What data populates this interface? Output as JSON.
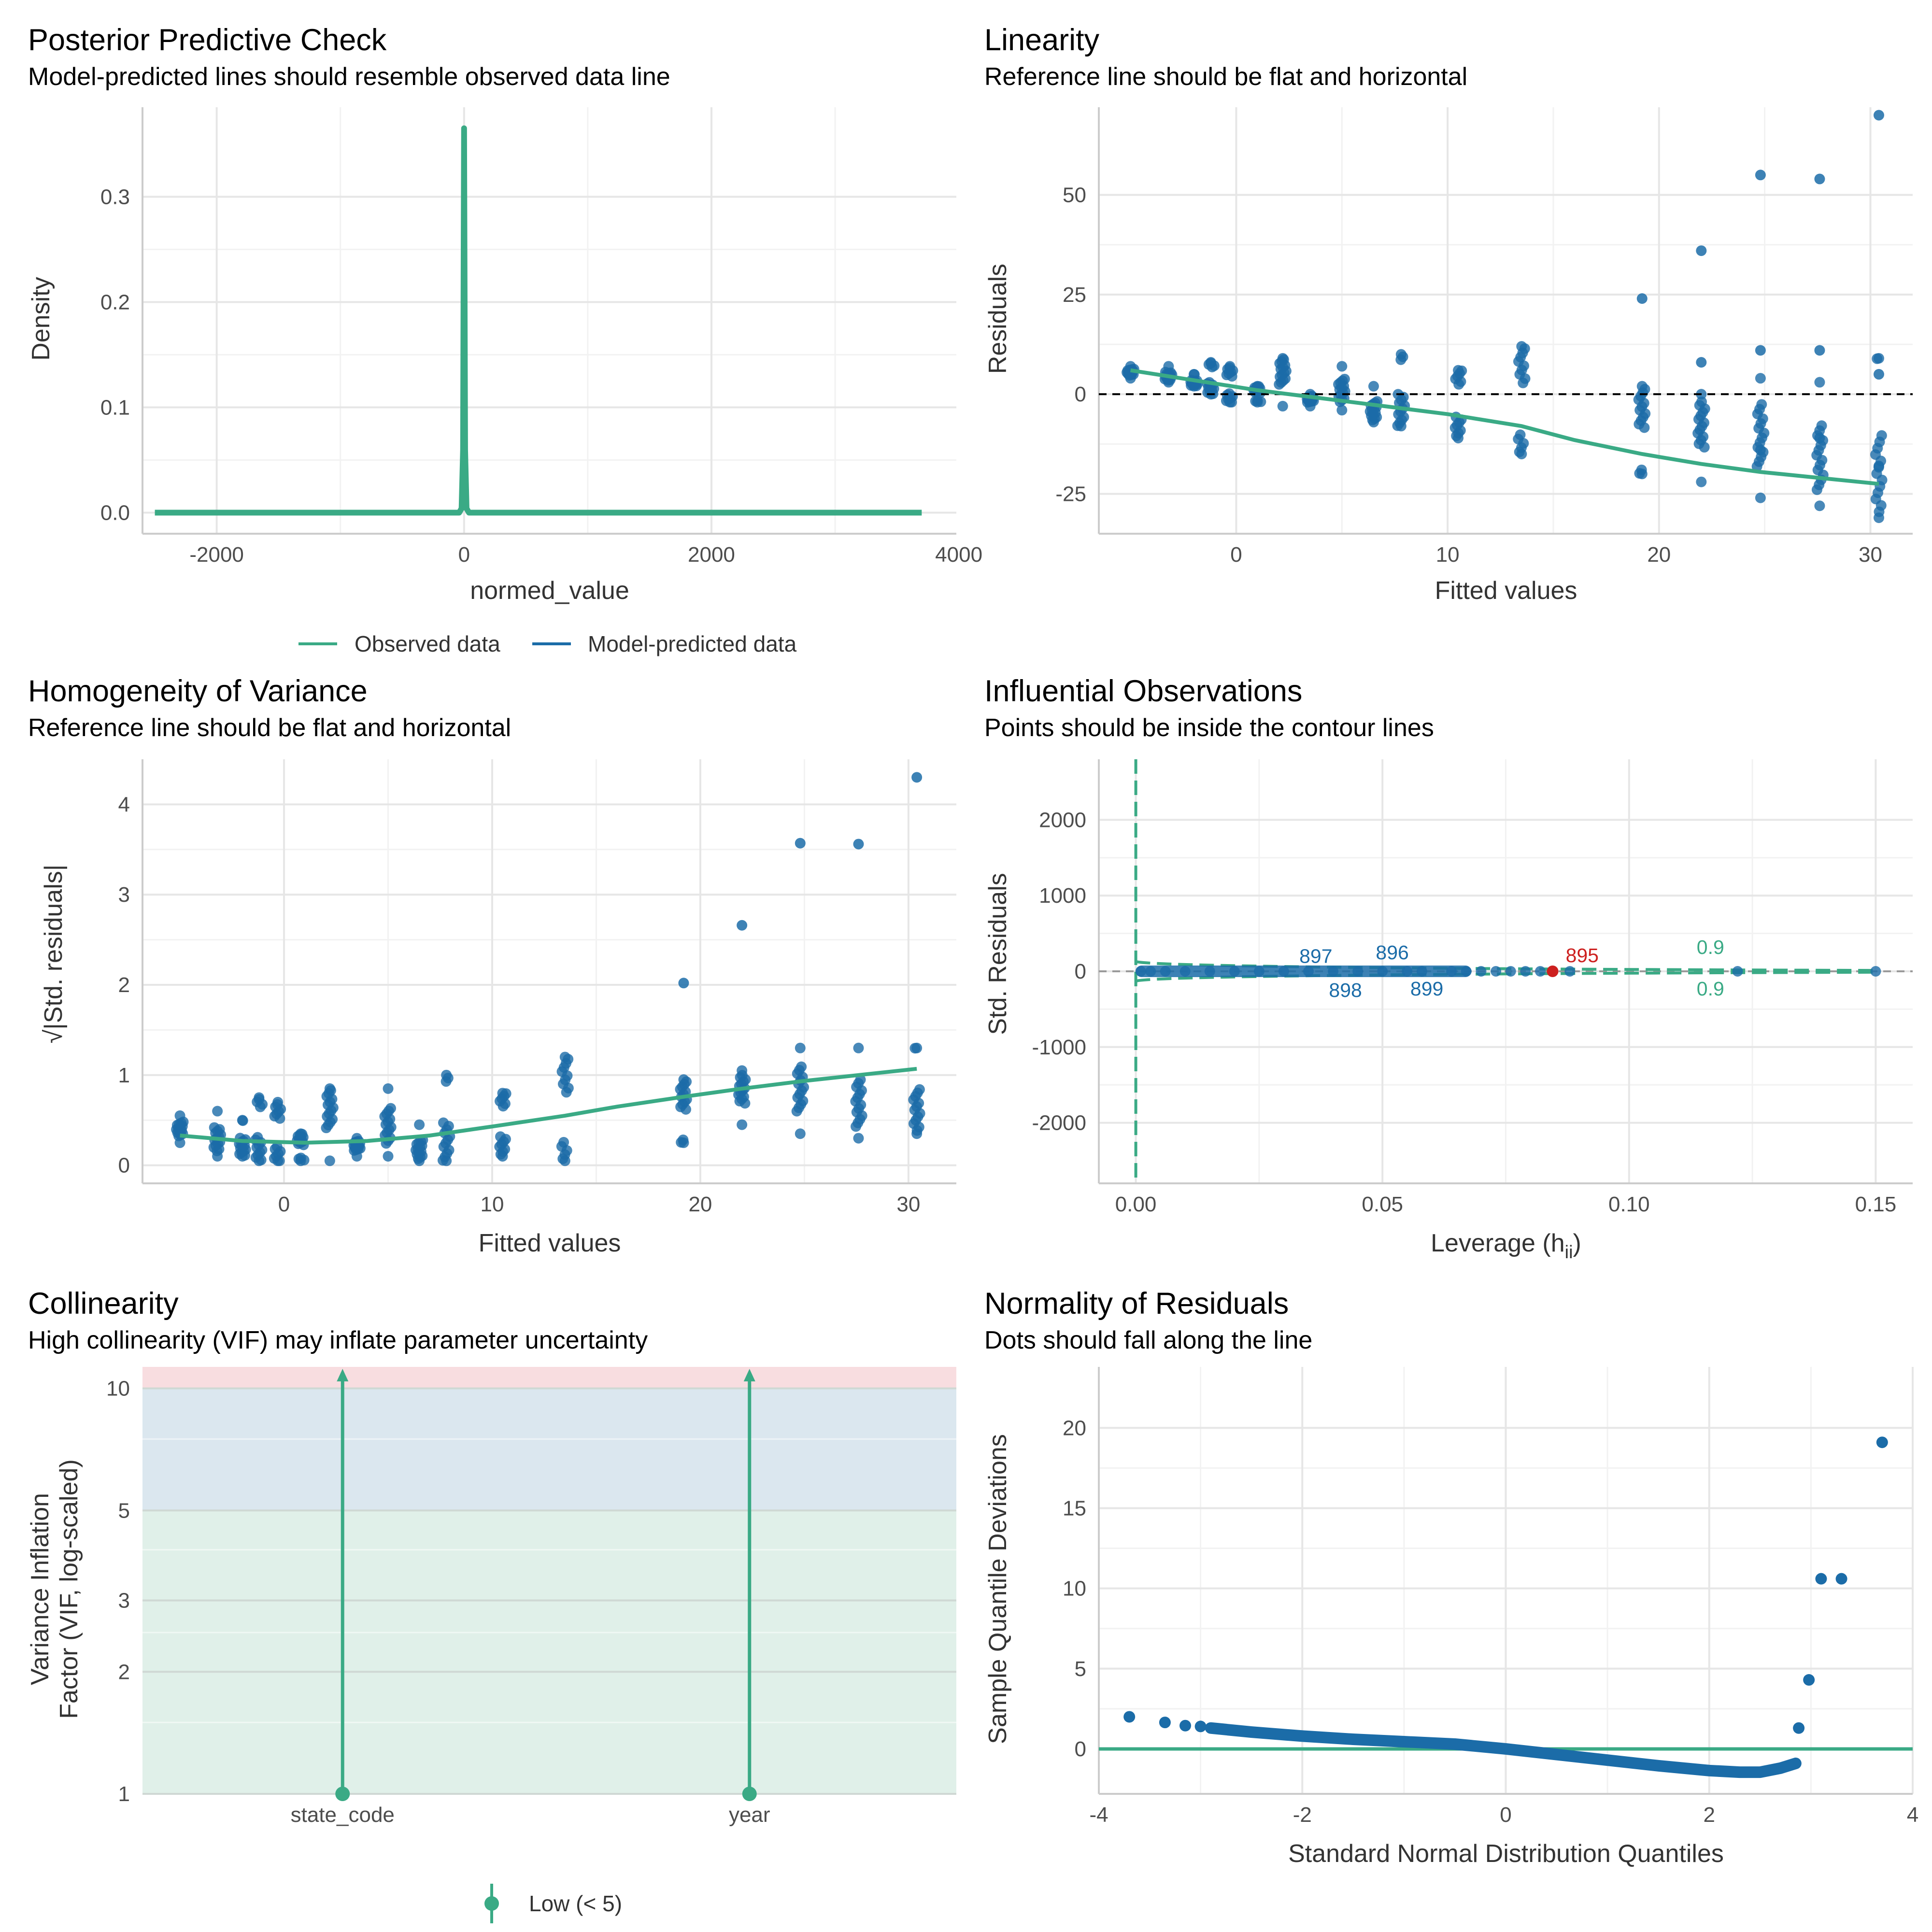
{
  "colors": {
    "observed": "#3aaa85",
    "predicted": "#1b6ca8",
    "point": "#1b6ca8",
    "line": "#3aaa85",
    "highlight": "#cd201f",
    "zone_low": "#e0f0e9",
    "zone_moderate": "#dbe7ef",
    "zone_high": "#f8dde0"
  },
  "chart_data": [
    {
      "id": "ppc",
      "type": "line",
      "title": "Posterior Predictive Check",
      "subtitle": "Model-predicted lines should resemble observed data line",
      "xlabel": "normed_value",
      "ylabel": "Density",
      "xlim": [
        -2600,
        3980
      ],
      "ylim": [
        -0.02,
        0.385
      ],
      "xticks": [
        -2000,
        0,
        2000,
        4000
      ],
      "xtick_labels": [
        "-2000",
        "0",
        "2000",
        "4000"
      ],
      "yticks": [
        0,
        0.1,
        0.2,
        0.3
      ],
      "ytick_labels": [
        "0.0",
        "0.1",
        "0.2",
        "0.3"
      ],
      "grid": true,
      "legend": {
        "position": "bottom",
        "items": [
          {
            "label": "Observed data",
            "color": "#3aaa85"
          },
          {
            "label": "Model-predicted data",
            "color": "#1b6ca8"
          }
        ]
      },
      "series": [
        {
          "name": "Observed data",
          "x": [
            -2500,
            -40,
            -20,
            -8,
            -3,
            0,
            3,
            8,
            20,
            40,
            3700
          ],
          "y": [
            0,
            0,
            0.004,
            0.06,
            0.25,
            0.365,
            0.25,
            0.06,
            0.004,
            0,
            0
          ]
        }
      ]
    },
    {
      "id": "linearity",
      "type": "scatter",
      "title": "Linearity",
      "subtitle": "Reference line should be flat and horizontal",
      "xlabel": "Fitted values",
      "ylabel": "Residuals",
      "xlim": [
        -6.5,
        32
      ],
      "ylim": [
        -35,
        72
      ],
      "xticks": [
        0,
        10,
        20,
        30
      ],
      "xtick_labels": [
        "0",
        "10",
        "20",
        "30"
      ],
      "yticks": [
        -25,
        0,
        25,
        50
      ],
      "ytick_labels": [
        "-25",
        "0",
        "25",
        "50"
      ],
      "grid": true,
      "reference_line": {
        "y": 0,
        "style": "dashed"
      },
      "columns": [
        {
          "x": -5,
          "min": 4,
          "max": 7
        },
        {
          "x": -3.2,
          "min": 3,
          "max": 7
        },
        {
          "x": -2,
          "min": 2,
          "max": 5
        },
        {
          "x": -1.2,
          "min": 0,
          "max": 8
        },
        {
          "x": -0.3,
          "min": -2,
          "max": 7
        },
        {
          "x": 1,
          "min": -2,
          "max": 2
        },
        {
          "x": 2.2,
          "min": -3,
          "max": 9
        },
        {
          "x": 3.5,
          "min": -3,
          "max": 0
        },
        {
          "x": 5,
          "min": -4,
          "max": 7
        },
        {
          "x": 6.5,
          "min": -7,
          "max": 2
        },
        {
          "x": 7.8,
          "min": -8,
          "max": 10
        },
        {
          "x": 10.5,
          "min": -11,
          "max": 6
        },
        {
          "x": 13.5,
          "min": -15,
          "max": 12
        },
        {
          "x": 19.2,
          "min": -20,
          "max": 2
        },
        {
          "x": 22,
          "min": -22,
          "max": 0
        },
        {
          "x": 24.8,
          "min": -26,
          "max": 4
        },
        {
          "x": 27.6,
          "min": -28,
          "max": 3
        },
        {
          "x": 30.4,
          "min": -31,
          "max": 9
        }
      ],
      "outliers": [
        [
          19.2,
          24
        ],
        [
          22,
          36
        ],
        [
          24.8,
          55
        ],
        [
          27.6,
          54
        ],
        [
          30.4,
          70
        ],
        [
          22,
          8
        ],
        [
          24.8,
          11
        ],
        [
          27.6,
          11
        ],
        [
          30.4,
          5
        ],
        [
          27.6,
          -11
        ],
        [
          24.8,
          -14
        ],
        [
          30.4,
          -18
        ]
      ],
      "smooth": {
        "x": [
          -5,
          -2,
          1,
          4,
          7,
          10,
          13.5,
          16,
          19.2,
          22,
          24.8,
          27.6,
          30.4
        ],
        "y": [
          6,
          3.5,
          1,
          -1,
          -3,
          -5,
          -8,
          -11.5,
          -15,
          -17.5,
          -19.5,
          -21,
          -22.5
        ]
      }
    },
    {
      "id": "homogeneity",
      "type": "scatter",
      "title": "Homogeneity of Variance",
      "subtitle": "Reference line should be flat and horizontal",
      "xlabel": "Fitted values",
      "ylabel": "√|Std. residuals|",
      "xlim": [
        -6.8,
        32.3
      ],
      "ylim": [
        -0.2,
        4.5
      ],
      "xticks": [
        0,
        10,
        20,
        30
      ],
      "xtick_labels": [
        "0",
        "10",
        "20",
        "30"
      ],
      "yticks": [
        0,
        1,
        2,
        3,
        4
      ],
      "ytick_labels": [
        "0",
        "1",
        "2",
        "3",
        "4"
      ],
      "grid": true,
      "columns": [
        {
          "x": -5,
          "min": 0.25,
          "max": 0.55
        },
        {
          "x": -3.2,
          "min": 0.1,
          "max": 0.6
        },
        {
          "x": -2,
          "min": 0.1,
          "max": 0.5
        },
        {
          "x": -1.2,
          "min": 0.05,
          "max": 0.75
        },
        {
          "x": -0.3,
          "min": 0.05,
          "max": 0.7
        },
        {
          "x": 0.8,
          "min": 0.05,
          "max": 0.35
        },
        {
          "x": 2.2,
          "min": 0.05,
          "max": 0.85
        },
        {
          "x": 3.5,
          "min": 0.1,
          "max": 0.3
        },
        {
          "x": 5,
          "min": 0.1,
          "max": 0.85
        },
        {
          "x": 6.5,
          "min": 0.05,
          "max": 0.45
        },
        {
          "x": 7.8,
          "min": 0.05,
          "max": 1.0
        },
        {
          "x": 10.5,
          "min": 0.1,
          "max": 0.8
        },
        {
          "x": 13.5,
          "min": 0.05,
          "max": 1.2
        },
        {
          "x": 19.2,
          "min": 0.25,
          "max": 0.95
        },
        {
          "x": 22,
          "min": 0.45,
          "max": 1.05
        },
        {
          "x": 24.8,
          "min": 0.35,
          "max": 1.3
        },
        {
          "x": 27.6,
          "min": 0.3,
          "max": 1.3
        },
        {
          "x": 30.4,
          "min": 0.35,
          "max": 1.3
        }
      ],
      "outliers": [
        [
          19.2,
          2.02
        ],
        [
          22,
          2.66
        ],
        [
          24.8,
          3.57
        ],
        [
          27.6,
          3.56
        ],
        [
          30.4,
          4.3
        ]
      ],
      "smooth": {
        "x": [
          -5,
          -2,
          1,
          4,
          7,
          10,
          13.5,
          16,
          19.2,
          22,
          24.8,
          27.6,
          30.4
        ],
        "y": [
          0.33,
          0.27,
          0.25,
          0.27,
          0.33,
          0.43,
          0.55,
          0.65,
          0.76,
          0.85,
          0.93,
          1.0,
          1.07
        ]
      }
    },
    {
      "id": "influential",
      "type": "scatter",
      "title": "Influential Observations",
      "subtitle": "Points should be inside the contour lines",
      "xlabel": "Leverage (hii)",
      "xlabel_main": "Leverage (h",
      "xlabel_sub": "ii",
      "xlabel_close": ")",
      "ylabel": "Std. Residuals",
      "xlim": [
        -0.0075,
        0.1575
      ],
      "ylim": [
        -2800,
        2800
      ],
      "xticks": [
        0,
        0.05,
        0.1,
        0.15
      ],
      "xtick_labels": [
        "0.00",
        "0.05",
        "0.10",
        "0.15"
      ],
      "yticks": [
        -2000,
        -1000,
        0,
        1000,
        2000
      ],
      "ytick_labels": [
        "-2000",
        "-1000",
        "0",
        "1000",
        "2000"
      ],
      "grid": true,
      "points": [
        [
          0.001,
          0
        ],
        [
          0.003,
          0
        ],
        [
          0.006,
          0
        ],
        [
          0.01,
          0
        ],
        [
          0.015,
          0
        ],
        [
          0.02,
          0
        ],
        [
          0.025,
          0
        ],
        [
          0.03,
          0
        ],
        [
          0.035,
          0
        ],
        [
          0.04,
          0
        ],
        [
          0.045,
          0
        ],
        [
          0.05,
          0
        ],
        [
          0.055,
          0
        ],
        [
          0.058,
          0
        ],
        [
          0.064,
          0
        ],
        [
          0.067,
          0
        ],
        [
          0.07,
          0
        ],
        [
          0.073,
          0
        ],
        [
          0.076,
          0
        ],
        [
          0.079,
          0
        ],
        [
          0.082,
          0
        ],
        [
          0.088,
          0
        ],
        [
          0.122,
          0
        ],
        [
          0.15,
          0
        ]
      ],
      "highlight_point": [
        0.0845,
        0
      ],
      "labels": [
        {
          "text": "897",
          "x": 0.0365,
          "y": 200,
          "color": "#1b6ca8"
        },
        {
          "text": "896",
          "x": 0.052,
          "y": 250,
          "color": "#1b6ca8"
        },
        {
          "text": "898",
          "x": 0.0425,
          "y": -250,
          "color": "#1b6ca8"
        },
        {
          "text": "899",
          "x": 0.059,
          "y": -230,
          "color": "#1b6ca8"
        },
        {
          "text": "895",
          "x": 0.0905,
          "y": 210,
          "color": "#cd201f"
        },
        {
          "text": "0.9",
          "x": 0.1165,
          "y": 320,
          "color": "#3aaa85"
        },
        {
          "text": "0.9",
          "x": 0.1165,
          "y": -230,
          "color": "#3aaa85"
        }
      ]
    },
    {
      "id": "collinearity",
      "type": "bar",
      "title": "Collinearity",
      "subtitle": "High collinearity (VIF) may inflate parameter uncertainty",
      "xlabel": "",
      "ylabel_line1": "Variance Inflation",
      "ylabel_line2": "Factor (VIF, log-scaled)",
      "scale": "log",
      "ylim": [
        1,
        11.3
      ],
      "yticks": [
        1,
        2,
        3,
        5,
        10
      ],
      "ytick_labels": [
        "1",
        "2",
        "3",
        "5",
        "10"
      ],
      "categories": [
        "state_code",
        "year"
      ],
      "values": [
        1,
        1
      ],
      "zones": [
        {
          "from": 1,
          "to": 5,
          "color": "#e0f0e9"
        },
        {
          "from": 5,
          "to": 10,
          "color": "#dbe7ef"
        },
        {
          "from": 10,
          "to": 11.3,
          "color": "#f8dde0"
        }
      ],
      "legend": {
        "position": "bottom",
        "items": [
          {
            "label": "Low (< 5)",
            "color": "#3aaa85"
          }
        ]
      }
    },
    {
      "id": "normality",
      "type": "scatter",
      "title": "Normality of Residuals",
      "subtitle": "Dots should fall along the line",
      "xlabel": "Standard Normal Distribution Quantiles",
      "ylabel": "Sample Quantile Deviations",
      "xlim": [
        -4,
        4
      ],
      "ylim": [
        -2.8,
        23.8
      ],
      "xticks": [
        -4,
        -2,
        0,
        2,
        4
      ],
      "xtick_labels": [
        "-4",
        "-2",
        "0",
        "2",
        "4"
      ],
      "yticks": [
        0,
        5,
        10,
        15,
        20
      ],
      "ytick_labels": [
        "0",
        "5",
        "10",
        "15",
        "20"
      ],
      "grid": true,
      "reference_line": {
        "y": 0
      },
      "curve": {
        "x": [
          -2.9,
          -2.5,
          -2.0,
          -1.5,
          -1.0,
          -0.5,
          0,
          0.5,
          1.0,
          1.5,
          2.0,
          2.3,
          2.5,
          2.7,
          2.85
        ],
        "y": [
          1.3,
          1.05,
          0.8,
          0.6,
          0.45,
          0.3,
          0.0,
          -0.35,
          -0.7,
          -1.05,
          -1.35,
          -1.45,
          -1.45,
          -1.2,
          -0.9
        ]
      },
      "outliers": [
        [
          -3.7,
          2.0
        ],
        [
          -3.35,
          1.65
        ],
        [
          -3.15,
          1.45
        ],
        [
          -3.0,
          1.4
        ],
        [
          2.88,
          1.3
        ],
        [
          2.98,
          4.3
        ],
        [
          3.1,
          10.6
        ],
        [
          3.3,
          10.6
        ],
        [
          3.7,
          19.1
        ]
      ]
    }
  ]
}
